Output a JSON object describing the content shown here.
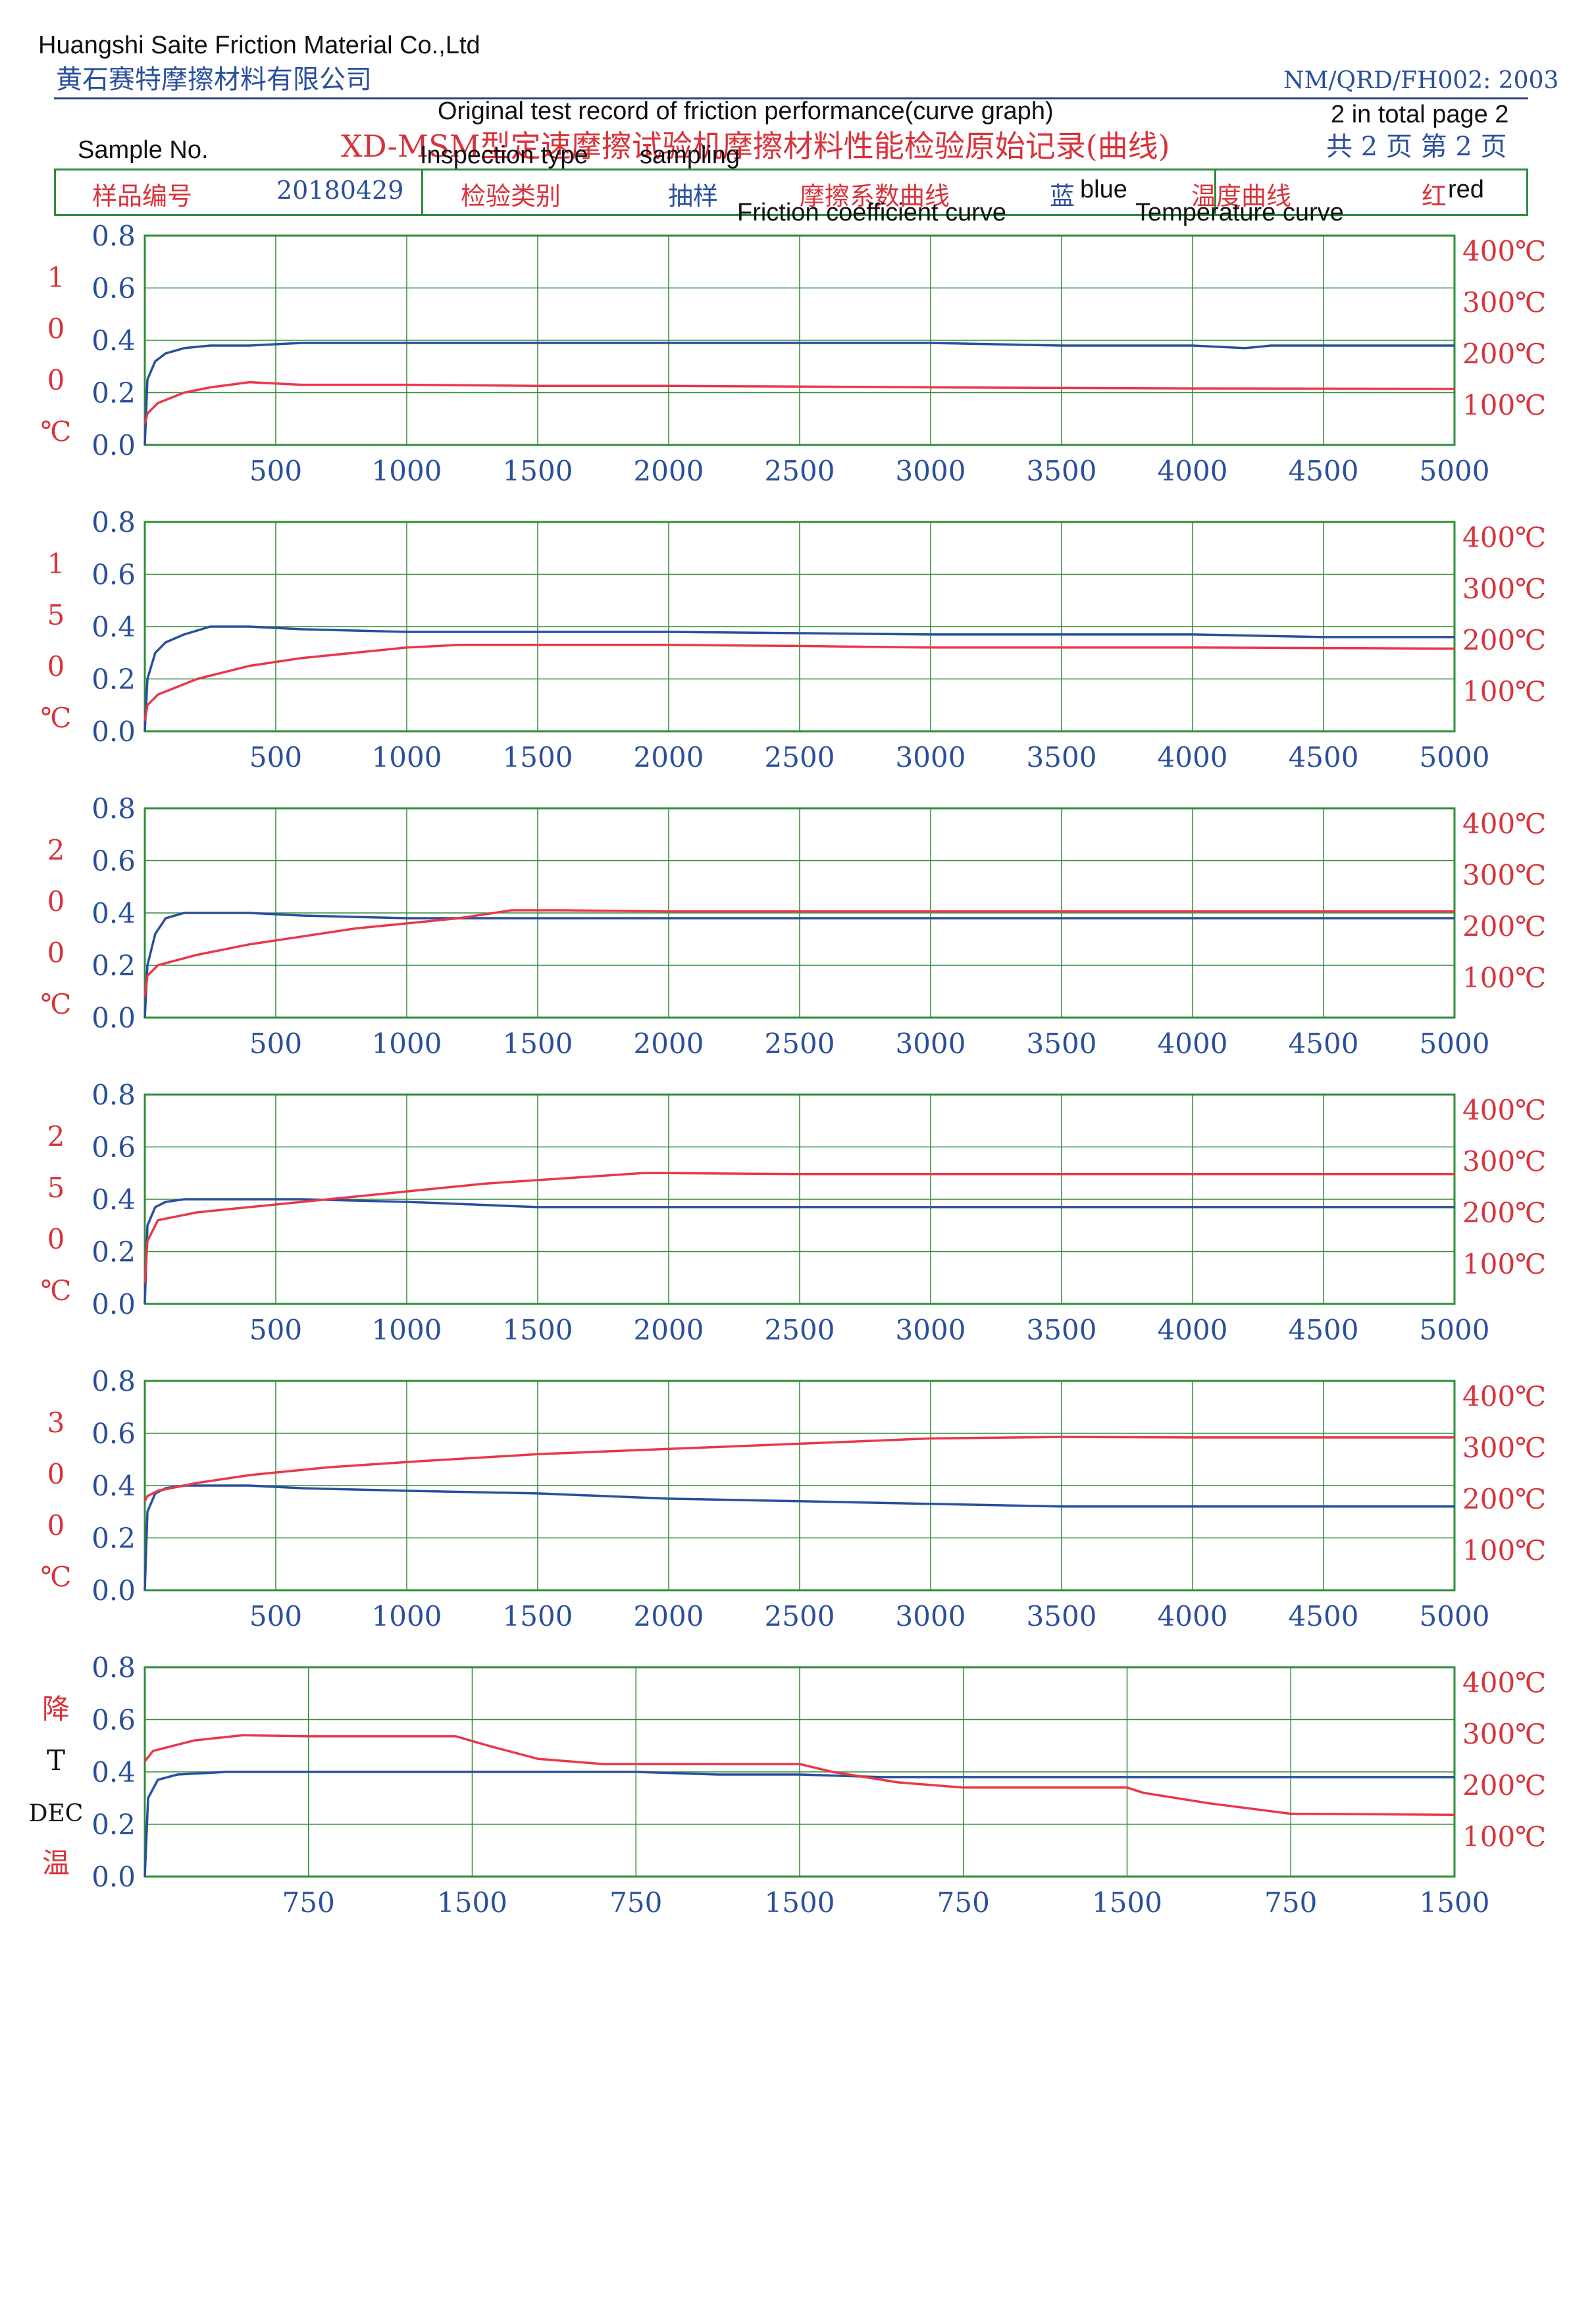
{
  "header": {
    "company_en": "Huangshi Saite Friction Material Co.,Ltd",
    "company_cn": "黄石赛特摩擦材料有限公司",
    "doc_code": "NM/QRD/FH002: 2003",
    "title_en": "Original test record of friction performance(curve graph)",
    "title_cn": "XD-MSM型定速摩擦试验机摩擦材料性能检验原始记录(曲线)",
    "page_en": "2 in total page 2",
    "page_cn": "共 2 页 第 2 页"
  },
  "info": {
    "sample_no_en": "Sample No.",
    "sample_no_cn": "样品编号",
    "sample_no_value": "20180429",
    "inspection_type_en": "Inspection type",
    "inspection_type_cn": "检验类别",
    "inspection_value_en": "sampling",
    "inspection_value_cn": "抽样",
    "friction_curve_cn": "摩擦系数曲线",
    "friction_curve_en": "Friction coefficient curve",
    "blue_cn": "蓝",
    "blue_en": "blue",
    "temp_curve_cn": "温度曲线",
    "temp_curve_en": "Temperature curve",
    "red_cn": "红",
    "red_en": "red"
  },
  "colors": {
    "friction_blue": "#2a4f9c",
    "temperature_red": "#e8384a",
    "grid_green": "#2f8c3a",
    "axis_label_blue": "#2a4f9c",
    "axis_label_red": "#d8333b"
  },
  "chart_data": [
    {
      "type": "line",
      "side_label": [
        "1",
        "0",
        "0",
        "℃"
      ],
      "left_ticks": [
        "0.8",
        "0.6",
        "0.4",
        "0.2",
        "0.0"
      ],
      "right_ticks": [
        "400℃",
        "300℃",
        "200℃",
        "100℃"
      ],
      "x_ticks": [
        "500",
        "1000",
        "1500",
        "2000",
        "2500",
        "3000",
        "3500",
        "4000",
        "4500",
        "5000"
      ],
      "xlim": [
        0,
        5000
      ],
      "ylim_left": [
        0,
        0.8
      ],
      "ylim_right": [
        0,
        400
      ],
      "series": [
        {
          "name": "蓝 blue",
          "axis": "left",
          "x": [
            0,
            10,
            40,
            80,
            150,
            250,
            400,
            600,
            1000,
            1500,
            2000,
            3000,
            3500,
            4000,
            4200,
            4300,
            5000
          ],
          "y": [
            0,
            0.25,
            0.32,
            0.35,
            0.37,
            0.38,
            0.38,
            0.39,
            0.39,
            0.39,
            0.39,
            0.39,
            0.38,
            0.38,
            0.37,
            0.38,
            0.38
          ]
        },
        {
          "name": "红 red",
          "axis": "right",
          "x": [
            0,
            10,
            50,
            150,
            250,
            400,
            600,
            1000,
            1500,
            2000,
            3000,
            4000,
            5000
          ],
          "y": [
            40,
            60,
            80,
            100,
            110,
            120,
            115,
            115,
            113,
            113,
            110,
            108,
            107
          ]
        }
      ]
    },
    {
      "type": "line",
      "side_label": [
        "1",
        "5",
        "0",
        "℃"
      ],
      "left_ticks": [
        "0.8",
        "0.6",
        "0.4",
        "0.2",
        "0.0"
      ],
      "right_ticks": [
        "400℃",
        "300℃",
        "200℃",
        "100℃"
      ],
      "x_ticks": [
        "500",
        "1000",
        "1500",
        "2000",
        "2500",
        "3000",
        "3500",
        "4000",
        "4500",
        "5000"
      ],
      "xlim": [
        0,
        5000
      ],
      "ylim_left": [
        0,
        0.8
      ],
      "ylim_right": [
        0,
        400
      ],
      "series": [
        {
          "name": "蓝 blue",
          "axis": "left",
          "x": [
            0,
            10,
            40,
            80,
            150,
            250,
            400,
            600,
            1000,
            1500,
            2000,
            3000,
            4000,
            4500,
            5000
          ],
          "y": [
            0,
            0.2,
            0.3,
            0.34,
            0.37,
            0.4,
            0.4,
            0.39,
            0.38,
            0.38,
            0.38,
            0.37,
            0.37,
            0.36,
            0.36
          ]
        },
        {
          "name": "红 red",
          "axis": "right",
          "x": [
            0,
            10,
            50,
            200,
            400,
            600,
            800,
            1000,
            1200,
            1500,
            2000,
            2500,
            3000,
            4000,
            5000
          ],
          "y": [
            20,
            50,
            70,
            100,
            125,
            140,
            150,
            160,
            165,
            165,
            165,
            163,
            160,
            160,
            158
          ]
        }
      ]
    },
    {
      "type": "line",
      "side_label": [
        "2",
        "0",
        "0",
        "℃"
      ],
      "left_ticks": [
        "0.8",
        "0.6",
        "0.4",
        "0.2",
        "0.0"
      ],
      "right_ticks": [
        "400℃",
        "300℃",
        "200℃",
        "100℃"
      ],
      "x_ticks": [
        "500",
        "1000",
        "1500",
        "2000",
        "2500",
        "3000",
        "3500",
        "4000",
        "4500",
        "5000"
      ],
      "xlim": [
        0,
        5000
      ],
      "ylim_left": [
        0,
        0.8
      ],
      "ylim_right": [
        0,
        400
      ],
      "series": [
        {
          "name": "蓝 blue",
          "axis": "left",
          "x": [
            0,
            10,
            40,
            80,
            150,
            250,
            400,
            600,
            1000,
            1500,
            2000,
            3000,
            4000,
            5000
          ],
          "y": [
            0,
            0.2,
            0.32,
            0.38,
            0.4,
            0.4,
            0.4,
            0.39,
            0.38,
            0.38,
            0.38,
            0.38,
            0.38,
            0.38
          ]
        },
        {
          "name": "红 red",
          "axis": "right",
          "x": [
            0,
            10,
            50,
            200,
            400,
            600,
            800,
            1000,
            1200,
            1400,
            1600,
            2000,
            3000,
            4000,
            5000
          ],
          "y": [
            40,
            80,
            100,
            120,
            140,
            155,
            170,
            180,
            190,
            205,
            205,
            203,
            203,
            203,
            203
          ]
        }
      ]
    },
    {
      "type": "line",
      "side_label": [
        "2",
        "5",
        "0",
        "℃"
      ],
      "left_ticks": [
        "0.8",
        "0.6",
        "0.4",
        "0.2",
        "0.0"
      ],
      "right_ticks": [
        "400℃",
        "300℃",
        "200℃",
        "100℃"
      ],
      "x_ticks": [
        "500",
        "1000",
        "1500",
        "2000",
        "2500",
        "3000",
        "3500",
        "4000",
        "4500",
        "5000"
      ],
      "xlim": [
        0,
        5000
      ],
      "ylim_left": [
        0,
        0.8
      ],
      "ylim_right": [
        0,
        400
      ],
      "series": [
        {
          "name": "蓝 blue",
          "axis": "left",
          "x": [
            0,
            10,
            40,
            80,
            150,
            250,
            400,
            600,
            1000,
            1500,
            2000,
            3000,
            4000,
            5000
          ],
          "y": [
            0,
            0.3,
            0.37,
            0.39,
            0.4,
            0.4,
            0.4,
            0.4,
            0.39,
            0.37,
            0.37,
            0.37,
            0.37,
            0.37
          ]
        },
        {
          "name": "红 red",
          "axis": "right",
          "x": [
            0,
            10,
            50,
            200,
            400,
            600,
            1000,
            1300,
            1600,
            1900,
            2000,
            2500,
            3000,
            4000,
            5000
          ],
          "y": [
            40,
            120,
            160,
            175,
            185,
            195,
            215,
            230,
            240,
            250,
            250,
            248,
            248,
            248,
            248
          ]
        }
      ]
    },
    {
      "type": "line",
      "side_label": [
        "3",
        "0",
        "0",
        "℃"
      ],
      "left_ticks": [
        "0.8",
        "0.6",
        "0.4",
        "0.2",
        "0.0"
      ],
      "right_ticks": [
        "400℃",
        "300℃",
        "200℃",
        "100℃"
      ],
      "x_ticks": [
        "500",
        "1000",
        "1500",
        "2000",
        "2500",
        "3000",
        "3500",
        "4000",
        "4500",
        "5000"
      ],
      "xlim": [
        0,
        5000
      ],
      "ylim_left": [
        0,
        0.8
      ],
      "ylim_right": [
        0,
        400
      ],
      "series": [
        {
          "name": "蓝 blue",
          "axis": "left",
          "x": [
            0,
            10,
            40,
            80,
            150,
            250,
            400,
            600,
            1000,
            1500,
            2000,
            2500,
            3000,
            3500,
            4000,
            5000
          ],
          "y": [
            0,
            0.3,
            0.37,
            0.39,
            0.4,
            0.4,
            0.4,
            0.39,
            0.38,
            0.37,
            0.35,
            0.34,
            0.33,
            0.32,
            0.32,
            0.32
          ]
        },
        {
          "name": "红 red",
          "axis": "right",
          "x": [
            0,
            10,
            50,
            200,
            400,
            700,
            1000,
            1500,
            2000,
            2500,
            3000,
            3500,
            4000,
            5000
          ],
          "y": [
            170,
            180,
            190,
            205,
            220,
            235,
            245,
            260,
            270,
            280,
            290,
            293,
            292,
            292
          ]
        }
      ]
    },
    {
      "type": "line",
      "side_label": [
        "降",
        "T",
        "DEC",
        "温"
      ],
      "left_ticks": [
        "0.8",
        "0.6",
        "0.4",
        "0.2",
        "0.0"
      ],
      "right_ticks": [
        "400℃",
        "300℃",
        "200℃",
        "100℃"
      ],
      "x_ticks": [
        "750",
        "1500",
        "750",
        "1500",
        "750",
        "1500",
        "750",
        "1500"
      ],
      "xlim": [
        0,
        8
      ],
      "ylim_left": [
        0,
        0.8
      ],
      "ylim_right": [
        0,
        400
      ],
      "series": [
        {
          "name": "蓝 blue",
          "axis": "left",
          "x": [
            0,
            0.02,
            0.08,
            0.2,
            0.5,
            1,
            2,
            3,
            3.5,
            4,
            4.5,
            5,
            6,
            7,
            8
          ],
          "y": [
            0,
            0.3,
            0.37,
            0.39,
            0.4,
            0.4,
            0.4,
            0.4,
            0.39,
            0.39,
            0.38,
            0.38,
            0.38,
            0.38,
            0.38
          ]
        },
        {
          "name": "红 red",
          "axis": "right",
          "x": [
            0,
            0.05,
            0.3,
            0.6,
            1,
            1.5,
            1.9,
            2.1,
            2.4,
            2.8,
            3,
            3.5,
            4,
            4.2,
            4.6,
            5,
            6,
            6.1,
            6.5,
            7,
            8
          ],
          "y": [
            220,
            240,
            260,
            270,
            268,
            268,
            268,
            250,
            225,
            215,
            215,
            215,
            215,
            200,
            180,
            170,
            170,
            160,
            140,
            120,
            118
          ]
        }
      ]
    }
  ]
}
